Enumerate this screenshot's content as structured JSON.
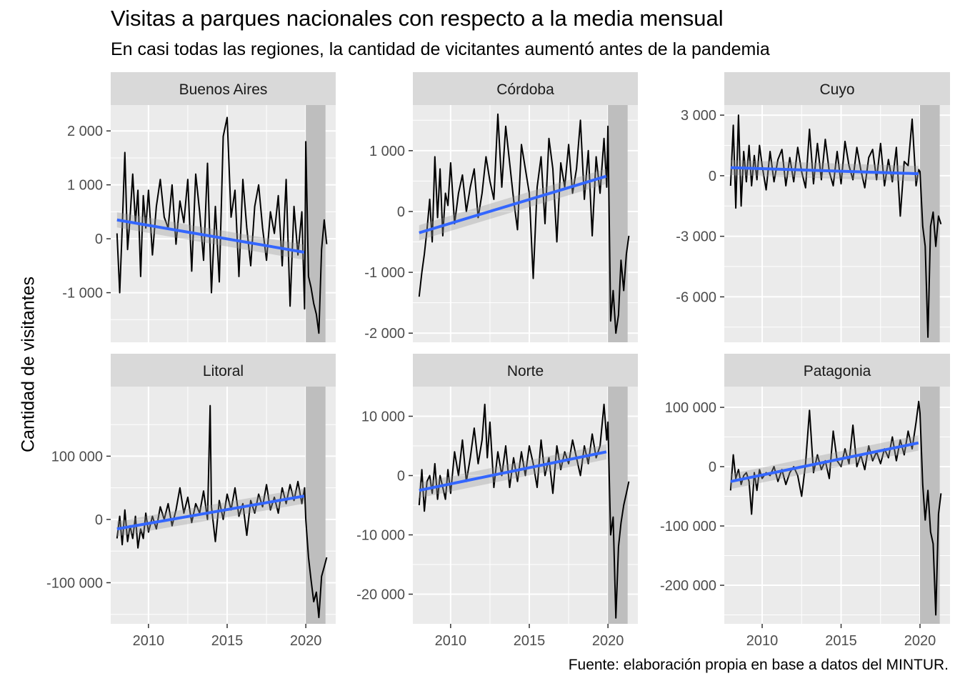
{
  "title": "Visitas a parques nacionales con respecto a la media mensual",
  "subtitle": "En casi todas las regiones, la cantidad de vicitantes aumentó antes de la pandemia",
  "ylabel": "Cantidad de visitantes",
  "caption": "Fuente: elaboración propia en base a datos del MINTUR.",
  "colors": {
    "panel_bg": "#ebebeb",
    "grid": "#ffffff",
    "strip_bg": "#d9d9d9",
    "shade": "#bebebe",
    "series": "#000000",
    "trend": "#3366ff",
    "ribbon": "#999999"
  },
  "chart_data": {
    "type": "line",
    "facet_layout": "2 rows x 3 columns",
    "xlabel": "",
    "x_ticks": [
      "2010",
      "2015",
      "2020"
    ],
    "xlim": [
      2007.6,
      2021.9
    ],
    "shaded_period": [
      2020.0,
      2021.25
    ],
    "panels": [
      {
        "name": "Buenos Aires",
        "ylim": [
          -1920,
          2480
        ],
        "y_ticks": [
          2000,
          1000,
          0,
          -1000
        ],
        "y_tick_labels": [
          "2 000",
          "1 000",
          "0",
          "-1 000"
        ],
        "x": [
          2008.0,
          2008.17,
          2008.33,
          2008.5,
          2008.67,
          2008.83,
          2009.0,
          2009.17,
          2009.33,
          2009.5,
          2009.67,
          2009.83,
          2010.0,
          2010.25,
          2010.5,
          2010.75,
          2011.0,
          2011.25,
          2011.5,
          2011.75,
          2012.0,
          2012.25,
          2012.5,
          2012.75,
          2013.0,
          2013.25,
          2013.5,
          2013.75,
          2014.0,
          2014.25,
          2014.5,
          2014.75,
          2015.0,
          2015.25,
          2015.5,
          2015.75,
          2016.0,
          2016.25,
          2016.5,
          2016.75,
          2017.0,
          2017.25,
          2017.5,
          2017.75,
          2018.0,
          2018.25,
          2018.5,
          2018.75,
          2019.0,
          2019.25,
          2019.5,
          2019.75,
          2019.92,
          2020.0,
          2020.17,
          2020.33,
          2020.5,
          2020.67,
          2020.83,
          2021.0,
          2021.17,
          2021.33
        ],
        "y": [
          100,
          -1000,
          200,
          1600,
          -200,
          400,
          1200,
          300,
          900,
          -700,
          800,
          200,
          900,
          -300,
          600,
          1100,
          400,
          200,
          1000,
          -100,
          700,
          300,
          1100,
          -600,
          1200,
          500,
          -400,
          1400,
          -1000,
          600,
          -800,
          1900,
          2250,
          400,
          900,
          -700,
          1100,
          200,
          -500,
          600,
          1000,
          200,
          -400,
          500,
          100,
          800,
          -500,
          1100,
          -1250,
          600,
          -300,
          500,
          -1300,
          1800,
          -700,
          -900,
          -1200,
          -1400,
          -1750,
          -200,
          350,
          -100
        ],
        "trend": {
          "x": [
            2008.0,
            2019.9
          ],
          "y": [
            350,
            -250
          ]
        }
      },
      {
        "name": "Córdoba",
        "ylim": [
          -2150,
          1750
        ],
        "y_ticks": [
          1000,
          0,
          -1000,
          -2000
        ],
        "y_tick_labels": [
          "1 000",
          "0",
          "-1 000",
          "-2 000"
        ],
        "x": [
          2008.0,
          2008.17,
          2008.33,
          2008.5,
          2008.67,
          2008.83,
          2009.0,
          2009.17,
          2009.33,
          2009.5,
          2009.67,
          2009.83,
          2010.0,
          2010.25,
          2010.5,
          2010.75,
          2011.0,
          2011.25,
          2011.5,
          2011.75,
          2012.0,
          2012.25,
          2012.5,
          2012.75,
          2013.0,
          2013.25,
          2013.5,
          2013.75,
          2014.0,
          2014.25,
          2014.5,
          2014.75,
          2015.0,
          2015.25,
          2015.5,
          2015.75,
          2016.0,
          2016.25,
          2016.5,
          2016.75,
          2017.0,
          2017.25,
          2017.5,
          2017.75,
          2018.0,
          2018.25,
          2018.5,
          2018.75,
          2019.0,
          2019.25,
          2019.5,
          2019.75,
          2019.92,
          2020.0,
          2020.17,
          2020.33,
          2020.5,
          2020.67,
          2020.83,
          2021.0,
          2021.17,
          2021.33
        ],
        "y": [
          -1400,
          -1000,
          -700,
          -300,
          200,
          -500,
          900,
          -100,
          700,
          -400,
          300,
          100,
          800,
          -200,
          300,
          600,
          0,
          400,
          700,
          -100,
          300,
          900,
          500,
          200,
          1600,
          400,
          1400,
          800,
          200,
          -300,
          1100,
          700,
          300,
          -1100,
          400,
          900,
          -200,
          1200,
          700,
          -500,
          800,
          400,
          1100,
          300,
          700,
          1500,
          200,
          1000,
          -400,
          900,
          300,
          1200,
          400,
          1400,
          -1800,
          -1300,
          -2000,
          -1700,
          -800,
          -1300,
          -700,
          -400
        ],
        "trend": {
          "x": [
            2008.0,
            2019.9
          ],
          "y": [
            -350,
            580
          ]
        }
      },
      {
        "name": "Cuyo",
        "ylim": [
          -8250,
          3500
        ],
        "y_ticks": [
          3000,
          0,
          -3000,
          -6000
        ],
        "y_tick_labels": [
          "3 000",
          "0",
          "-3 000",
          "-6 000"
        ],
        "x": [
          2008.0,
          2008.17,
          2008.33,
          2008.5,
          2008.67,
          2008.83,
          2009.0,
          2009.17,
          2009.33,
          2009.5,
          2009.67,
          2009.83,
          2010.0,
          2010.25,
          2010.5,
          2010.75,
          2011.0,
          2011.25,
          2011.5,
          2011.75,
          2012.0,
          2012.25,
          2012.5,
          2012.75,
          2013.0,
          2013.25,
          2013.5,
          2013.75,
          2014.0,
          2014.25,
          2014.5,
          2014.75,
          2015.0,
          2015.25,
          2015.5,
          2015.75,
          2016.0,
          2016.25,
          2016.5,
          2016.75,
          2017.0,
          2017.25,
          2017.5,
          2017.75,
          2018.0,
          2018.25,
          2018.5,
          2018.75,
          2019.0,
          2019.25,
          2019.5,
          2019.75,
          2019.92,
          2020.0,
          2020.17,
          2020.33,
          2020.5,
          2020.67,
          2020.83,
          2021.0,
          2021.17,
          2021.33
        ],
        "y": [
          -500,
          2500,
          -1600,
          3000,
          -1500,
          1200,
          -300,
          1500,
          -500,
          1000,
          -200,
          1500,
          500,
          -700,
          1200,
          -300,
          800,
          1300,
          -500,
          900,
          -300,
          1400,
          200,
          -600,
          2300,
          -400,
          1600,
          -200,
          1800,
          200,
          -500,
          1200,
          -400,
          1700,
          500,
          -200,
          1400,
          300,
          -600,
          900,
          1300,
          -200,
          1600,
          -500,
          800,
          -300,
          1400,
          -2000,
          700,
          500,
          2800,
          -500,
          300,
          200,
          -2500,
          -3500,
          -8000,
          -2500,
          -1800,
          -3500,
          -2000,
          -2400
        ],
        "trend": {
          "x": [
            2008.0,
            2019.9
          ],
          "y": [
            400,
            100
          ]
        }
      },
      {
        "name": "Litoral",
        "ylim": [
          -165000,
          210000
        ],
        "y_ticks": [
          100000,
          0,
          -100000
        ],
        "y_tick_labels": [
          "100 000",
          "0",
          "-100 000"
        ],
        "x": [
          2008.0,
          2008.17,
          2008.33,
          2008.5,
          2008.67,
          2008.83,
          2009.0,
          2009.17,
          2009.33,
          2009.5,
          2009.67,
          2009.83,
          2010.0,
          2010.25,
          2010.5,
          2010.75,
          2011.0,
          2011.25,
          2011.5,
          2011.75,
          2012.0,
          2012.25,
          2012.5,
          2012.75,
          2013.0,
          2013.25,
          2013.5,
          2013.75,
          2013.92,
          2014.0,
          2014.25,
          2014.5,
          2014.75,
          2015.0,
          2015.25,
          2015.5,
          2015.75,
          2016.0,
          2016.25,
          2016.5,
          2016.75,
          2017.0,
          2017.25,
          2017.5,
          2017.75,
          2018.0,
          2018.25,
          2018.5,
          2018.75,
          2019.0,
          2019.25,
          2019.5,
          2019.75,
          2019.92,
          2020.0,
          2020.17,
          2020.33,
          2020.5,
          2020.67,
          2020.83,
          2021.0,
          2021.17,
          2021.33
        ],
        "y": [
          -30000,
          5000,
          -40000,
          15000,
          -35000,
          -10000,
          -30000,
          5000,
          -45000,
          -15000,
          -30000,
          10000,
          -20000,
          5000,
          -15000,
          20000,
          0,
          25000,
          -10000,
          15000,
          50000,
          10000,
          35000,
          -5000,
          25000,
          10000,
          45000,
          0,
          180000,
          20000,
          -35000,
          30000,
          0,
          40000,
          15000,
          50000,
          5000,
          25000,
          -25000,
          30000,
          10000,
          40000,
          20000,
          55000,
          15000,
          35000,
          10000,
          50000,
          25000,
          55000,
          30000,
          60000,
          25000,
          50000,
          0,
          -60000,
          -95000,
          -130000,
          -115000,
          -155000,
          -90000,
          -75000,
          -60000
        ],
        "trend": {
          "x": [
            2008.0,
            2019.9
          ],
          "y": [
            -15000,
            37000
          ]
        }
      },
      {
        "name": "Norte",
        "ylim": [
          -25000,
          15000
        ],
        "y_ticks": [
          10000,
          0,
          -10000,
          -20000
        ],
        "y_tick_labels": [
          "10 000",
          "0",
          "-10 000",
          "-20 000"
        ],
        "x": [
          2008.0,
          2008.17,
          2008.33,
          2008.5,
          2008.67,
          2008.83,
          2009.0,
          2009.17,
          2009.33,
          2009.5,
          2009.67,
          2009.83,
          2010.0,
          2010.25,
          2010.5,
          2010.75,
          2011.0,
          2011.25,
          2011.5,
          2011.75,
          2012.0,
          2012.17,
          2012.33,
          2012.5,
          2012.75,
          2013.0,
          2013.25,
          2013.5,
          2013.75,
          2014.0,
          2014.25,
          2014.5,
          2014.75,
          2015.0,
          2015.25,
          2015.5,
          2015.75,
          2016.0,
          2016.25,
          2016.5,
          2016.75,
          2017.0,
          2017.25,
          2017.5,
          2017.75,
          2018.0,
          2018.25,
          2018.5,
          2018.75,
          2019.0,
          2019.25,
          2019.5,
          2019.75,
          2019.92,
          2020.0,
          2020.17,
          2020.33,
          2020.5,
          2020.67,
          2020.83,
          2021.0,
          2021.17,
          2021.33
        ],
        "y": [
          -5000,
          1000,
          -6000,
          -1000,
          0,
          -3000,
          2000,
          -4000,
          0,
          -2000,
          -4000,
          1000,
          -3000,
          4000,
          0,
          6000,
          -1000,
          3000,
          8000,
          2000,
          6000,
          12000,
          3000,
          9000,
          -2000,
          4000,
          0,
          5000,
          -2000,
          3000,
          -1000,
          4000,
          0,
          5000,
          2000,
          -2000,
          6000,
          0,
          3000,
          -3000,
          5000,
          1000,
          4000,
          2000,
          6000,
          3000,
          0,
          5000,
          2000,
          7000,
          3000,
          5000,
          12000,
          6000,
          9000,
          -10000,
          -7000,
          -24000,
          -12000,
          -8000,
          -5000,
          -3000,
          -1000
        ],
        "trend": {
          "x": [
            2008.0,
            2019.9
          ],
          "y": [
            -2500,
            4000
          ]
        }
      },
      {
        "name": "Patagonia",
        "ylim": [
          -265000,
          135000
        ],
        "y_ticks": [
          100000,
          0,
          -100000,
          -200000
        ],
        "y_tick_labels": [
          "100 000",
          "0",
          "-100 000",
          "-200 000"
        ],
        "x": [
          2008.0,
          2008.17,
          2008.33,
          2008.5,
          2008.67,
          2008.83,
          2009.0,
          2009.17,
          2009.33,
          2009.5,
          2009.67,
          2009.83,
          2010.0,
          2010.25,
          2010.5,
          2010.75,
          2011.0,
          2011.25,
          2011.5,
          2011.75,
          2012.0,
          2012.25,
          2012.5,
          2012.75,
          2013.0,
          2013.25,
          2013.5,
          2013.75,
          2014.0,
          2014.25,
          2014.5,
          2014.75,
          2015.0,
          2015.25,
          2015.5,
          2015.75,
          2016.0,
          2016.25,
          2016.5,
          2016.75,
          2017.0,
          2017.25,
          2017.5,
          2017.75,
          2018.0,
          2018.25,
          2018.5,
          2018.75,
          2019.0,
          2019.25,
          2019.5,
          2019.75,
          2019.92,
          2020.0,
          2020.17,
          2020.33,
          2020.5,
          2020.67,
          2020.83,
          2021.0,
          2021.17,
          2021.33
        ],
        "y": [
          -40000,
          20000,
          -20000,
          -5000,
          -30000,
          -15000,
          -10000,
          -25000,
          -80000,
          -10000,
          -40000,
          -5000,
          -20000,
          -10000,
          -15000,
          0,
          -25000,
          -5000,
          -30000,
          -10000,
          0,
          -15000,
          -50000,
          5000,
          95000,
          -10000,
          20000,
          -5000,
          10000,
          -20000,
          60000,
          10000,
          0,
          30000,
          5000,
          70000,
          0,
          20000,
          -5000,
          35000,
          10000,
          25000,
          5000,
          30000,
          15000,
          50000,
          10000,
          45000,
          20000,
          60000,
          30000,
          75000,
          110000,
          90000,
          -30000,
          -90000,
          -40000,
          -110000,
          -130000,
          -250000,
          -80000,
          -45000
        ],
        "trend": {
          "x": [
            2008.0,
            2019.9
          ],
          "y": [
            -25000,
            40000
          ]
        }
      }
    ]
  }
}
